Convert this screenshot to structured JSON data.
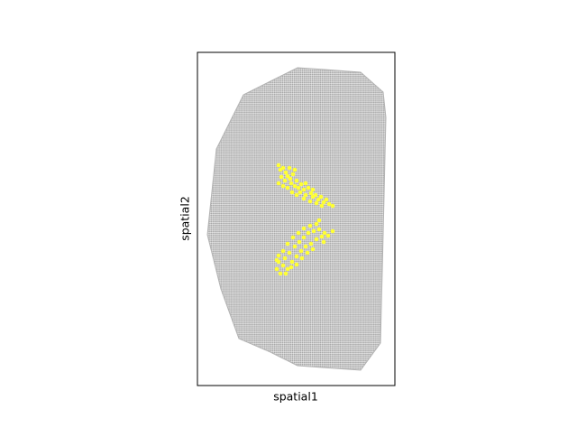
{
  "chart_data": {
    "type": "scatter",
    "x_label": "spatial1",
    "y_label": "spatial2",
    "xlim": [
      0,
      219
    ],
    "ylim": [
      369,
      0
    ],
    "series": [
      {
        "type": "area",
        "color": "#b3b3b3",
        "x": [
          111,
          141,
          181,
          206,
          209,
          206,
          203,
          181,
          111,
          81,
          46,
          26,
          11,
          21,
          51,
          81
        ],
        "y": [
          17,
          19,
          22,
          44,
          72,
          202,
          322,
          352,
          347,
          332,
          317,
          262,
          202,
          107,
          47,
          32
        ]
      },
      {
        "type": "scatter",
        "color": "#ffff33",
        "x": [
          90,
          92,
          95,
          98,
          93,
          97,
          100,
          103,
          106,
          104,
          108,
          110,
          112,
          115,
          118,
          114,
          120,
          123,
          126,
          128,
          131,
          134,
          137,
          140,
          143,
          146,
          150,
          100,
          95,
          105,
          110,
          118,
          125,
          132,
          90,
          120,
          128,
          108,
          102,
          138,
          88,
          90,
          92,
          95,
          97,
          100,
          102,
          105,
          108,
          110,
          113,
          115,
          118,
          120,
          123,
          126,
          129,
          132,
          135,
          138,
          141,
          145,
          150,
          95,
          100,
          106,
          112,
          118,
          125,
          132,
          135,
          90,
          98,
          104,
          110,
          116,
          122,
          128,
          140,
          88
        ],
        "y": [
          125,
          130,
          128,
          133,
          138,
          142,
          137,
          140,
          135,
          145,
          148,
          142,
          150,
          146,
          152,
          155,
          158,
          150,
          156,
          160,
          158,
          163,
          160,
          166,
          163,
          168,
          170,
          150,
          148,
          155,
          158,
          162,
          165,
          167,
          145,
          145,
          152,
          130,
          128,
          170,
          240,
          232,
          245,
          236,
          228,
          240,
          222,
          232,
          215,
          226,
          210,
          220,
          205,
          215,
          200,
          212,
          198,
          207,
          196,
          204,
          200,
          203,
          198,
          220,
          212,
          205,
          200,
          195,
          192,
          190,
          186,
          225,
          245,
          238,
          235,
          228,
          222,
          218,
          210,
          230
        ]
      }
    ]
  }
}
